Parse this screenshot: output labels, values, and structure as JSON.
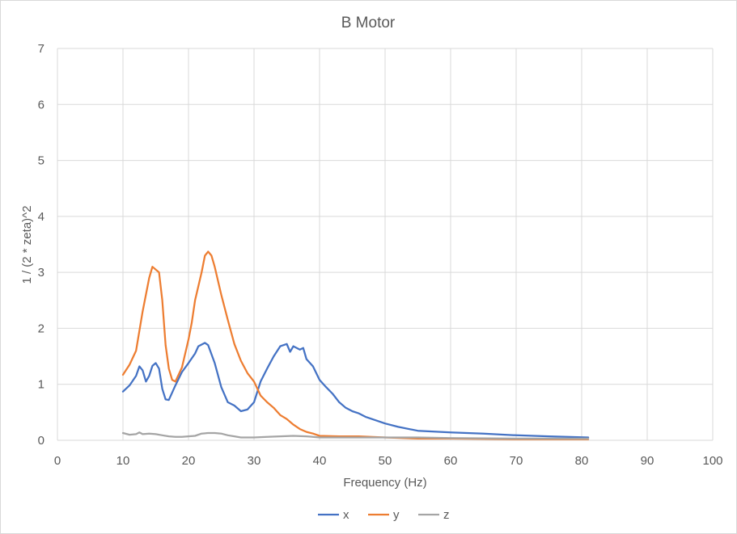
{
  "chart_data": {
    "type": "line",
    "title": "B Motor",
    "xlabel": "Frequency (Hz)",
    "ylabel": "1 / (2 * zeta)^2",
    "xlim": [
      0,
      100
    ],
    "ylim": [
      0,
      7
    ],
    "x_ticks": [
      "0",
      "10",
      "20",
      "30",
      "40",
      "50",
      "60",
      "70",
      "80",
      "90",
      "100"
    ],
    "y_ticks": [
      "0",
      "1",
      "2",
      "3",
      "4",
      "5",
      "6",
      "7"
    ],
    "grid": true,
    "legend_position": "bottom",
    "colors": {
      "x": "#4472c4",
      "y": "#ed7d31",
      "z": "#a5a5a5",
      "grid": "#d9d9d9",
      "text": "#595959"
    },
    "series": [
      {
        "name": "x",
        "points": [
          [
            10,
            0.87
          ],
          [
            11,
            0.98
          ],
          [
            12,
            1.15
          ],
          [
            12.5,
            1.32
          ],
          [
            13,
            1.25
          ],
          [
            13.5,
            1.05
          ],
          [
            14,
            1.15
          ],
          [
            14.5,
            1.33
          ],
          [
            15,
            1.38
          ],
          [
            15.5,
            1.28
          ],
          [
            16,
            0.92
          ],
          [
            16.5,
            0.73
          ],
          [
            17,
            0.72
          ],
          [
            18,
            0.98
          ],
          [
            19,
            1.22
          ],
          [
            20,
            1.38
          ],
          [
            21,
            1.55
          ],
          [
            21.5,
            1.68
          ],
          [
            22.5,
            1.74
          ],
          [
            23,
            1.7
          ],
          [
            24,
            1.38
          ],
          [
            25,
            0.95
          ],
          [
            26,
            0.68
          ],
          [
            27,
            0.62
          ],
          [
            28,
            0.52
          ],
          [
            29,
            0.55
          ],
          [
            30,
            0.68
          ],
          [
            31,
            1.05
          ],
          [
            32,
            1.28
          ],
          [
            33,
            1.5
          ],
          [
            34,
            1.68
          ],
          [
            35,
            1.72
          ],
          [
            35.5,
            1.58
          ],
          [
            36,
            1.68
          ],
          [
            37,
            1.62
          ],
          [
            37.5,
            1.65
          ],
          [
            38,
            1.45
          ],
          [
            39,
            1.32
          ],
          [
            40,
            1.08
          ],
          [
            41,
            0.95
          ],
          [
            42,
            0.83
          ],
          [
            43,
            0.68
          ],
          [
            44,
            0.58
          ],
          [
            45,
            0.52
          ],
          [
            46,
            0.48
          ],
          [
            47,
            0.42
          ],
          [
            48,
            0.38
          ],
          [
            50,
            0.3
          ],
          [
            52,
            0.24
          ],
          [
            55,
            0.17
          ],
          [
            60,
            0.14
          ],
          [
            65,
            0.12
          ],
          [
            70,
            0.09
          ],
          [
            75,
            0.07
          ],
          [
            81,
            0.05
          ]
        ]
      },
      {
        "name": "y",
        "points": [
          [
            10,
            1.17
          ],
          [
            11,
            1.35
          ],
          [
            12,
            1.6
          ],
          [
            13,
            2.3
          ],
          [
            14,
            2.9
          ],
          [
            14.5,
            3.1
          ],
          [
            15,
            3.05
          ],
          [
            15.5,
            3.0
          ],
          [
            16,
            2.5
          ],
          [
            16.5,
            1.7
          ],
          [
            17,
            1.28
          ],
          [
            17.5,
            1.08
          ],
          [
            18,
            1.05
          ],
          [
            19,
            1.3
          ],
          [
            20,
            1.8
          ],
          [
            20.5,
            2.1
          ],
          [
            21,
            2.5
          ],
          [
            22,
            3.0
          ],
          [
            22.5,
            3.3
          ],
          [
            23,
            3.37
          ],
          [
            23.5,
            3.3
          ],
          [
            24,
            3.1
          ],
          [
            25,
            2.6
          ],
          [
            26,
            2.15
          ],
          [
            27,
            1.72
          ],
          [
            28,
            1.42
          ],
          [
            29,
            1.2
          ],
          [
            30,
            1.05
          ],
          [
            31,
            0.8
          ],
          [
            32,
            0.68
          ],
          [
            33,
            0.58
          ],
          [
            34,
            0.45
          ],
          [
            35,
            0.38
          ],
          [
            36,
            0.28
          ],
          [
            37,
            0.2
          ],
          [
            38,
            0.15
          ],
          [
            39,
            0.12
          ],
          [
            40,
            0.08
          ],
          [
            43,
            0.07
          ],
          [
            46,
            0.07
          ],
          [
            50,
            0.05
          ],
          [
            55,
            0.03
          ],
          [
            60,
            0.03
          ],
          [
            70,
            0.02
          ],
          [
            81,
            0.02
          ]
        ]
      },
      {
        "name": "z",
        "points": [
          [
            10,
            0.13
          ],
          [
            11,
            0.1
          ],
          [
            12,
            0.11
          ],
          [
            12.5,
            0.14
          ],
          [
            13,
            0.11
          ],
          [
            14,
            0.12
          ],
          [
            15,
            0.11
          ],
          [
            16,
            0.09
          ],
          [
            17,
            0.07
          ],
          [
            18,
            0.06
          ],
          [
            19,
            0.06
          ],
          [
            20,
            0.07
          ],
          [
            21,
            0.08
          ],
          [
            22,
            0.12
          ],
          [
            23,
            0.13
          ],
          [
            24,
            0.13
          ],
          [
            25,
            0.12
          ],
          [
            26,
            0.09
          ],
          [
            27,
            0.07
          ],
          [
            28,
            0.05
          ],
          [
            29,
            0.05
          ],
          [
            30,
            0.05
          ],
          [
            32,
            0.06
          ],
          [
            34,
            0.07
          ],
          [
            36,
            0.08
          ],
          [
            38,
            0.07
          ],
          [
            40,
            0.05
          ],
          [
            45,
            0.05
          ],
          [
            50,
            0.05
          ],
          [
            55,
            0.05
          ],
          [
            60,
            0.04
          ],
          [
            70,
            0.03
          ],
          [
            81,
            0.03
          ]
        ]
      }
    ]
  }
}
